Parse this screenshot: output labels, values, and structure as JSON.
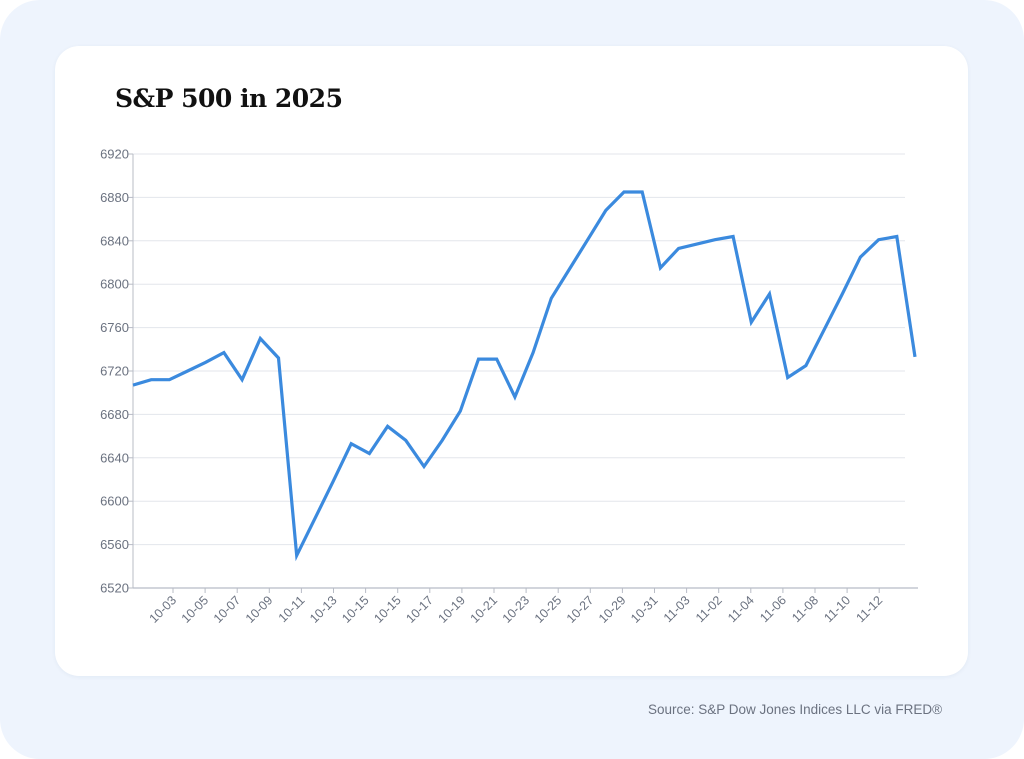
{
  "chart_data": {
    "type": "line",
    "title": "S&P 500 in 2025",
    "xlabel": "",
    "ylabel": "",
    "ylim": [
      6520,
      6920
    ],
    "y_ticks": [
      6520,
      6560,
      6600,
      6640,
      6680,
      6720,
      6760,
      6800,
      6840,
      6880,
      6920
    ],
    "x_tick_labels": [
      "10-03",
      "10-05",
      "10-07",
      "10-09",
      "10-11",
      "10-13",
      "10-15",
      "10-15",
      "10-17",
      "10-19",
      "10-21",
      "10-23",
      "10-25",
      "10-27",
      "10-29",
      "10-31",
      "11-03",
      "11-02",
      "11-04",
      "11-06",
      "11-08",
      "11-10",
      "11-12"
    ],
    "grid": "horizontal",
    "line_color": "#3b8ade",
    "values": [
      6707,
      6712,
      6712,
      6720,
      6728,
      6737,
      6712,
      6750,
      6732,
      6550,
      6584,
      6618,
      6653,
      6644,
      6669,
      6656,
      6632,
      6656,
      6683,
      6731,
      6731,
      6696,
      6737,
      6787,
      6814,
      6841,
      6868,
      6885,
      6885,
      6815,
      6833,
      6837,
      6841,
      6844,
      6765,
      6791,
      6714,
      6725,
      6758,
      6791,
      6825,
      6841,
      6844,
      6733
    ]
  },
  "source": "Source: S&P Dow Jones Indices LLC via FRED®",
  "colors": {
    "background": "#eef4fd",
    "card": "#ffffff",
    "line": "#3b8ade"
  }
}
